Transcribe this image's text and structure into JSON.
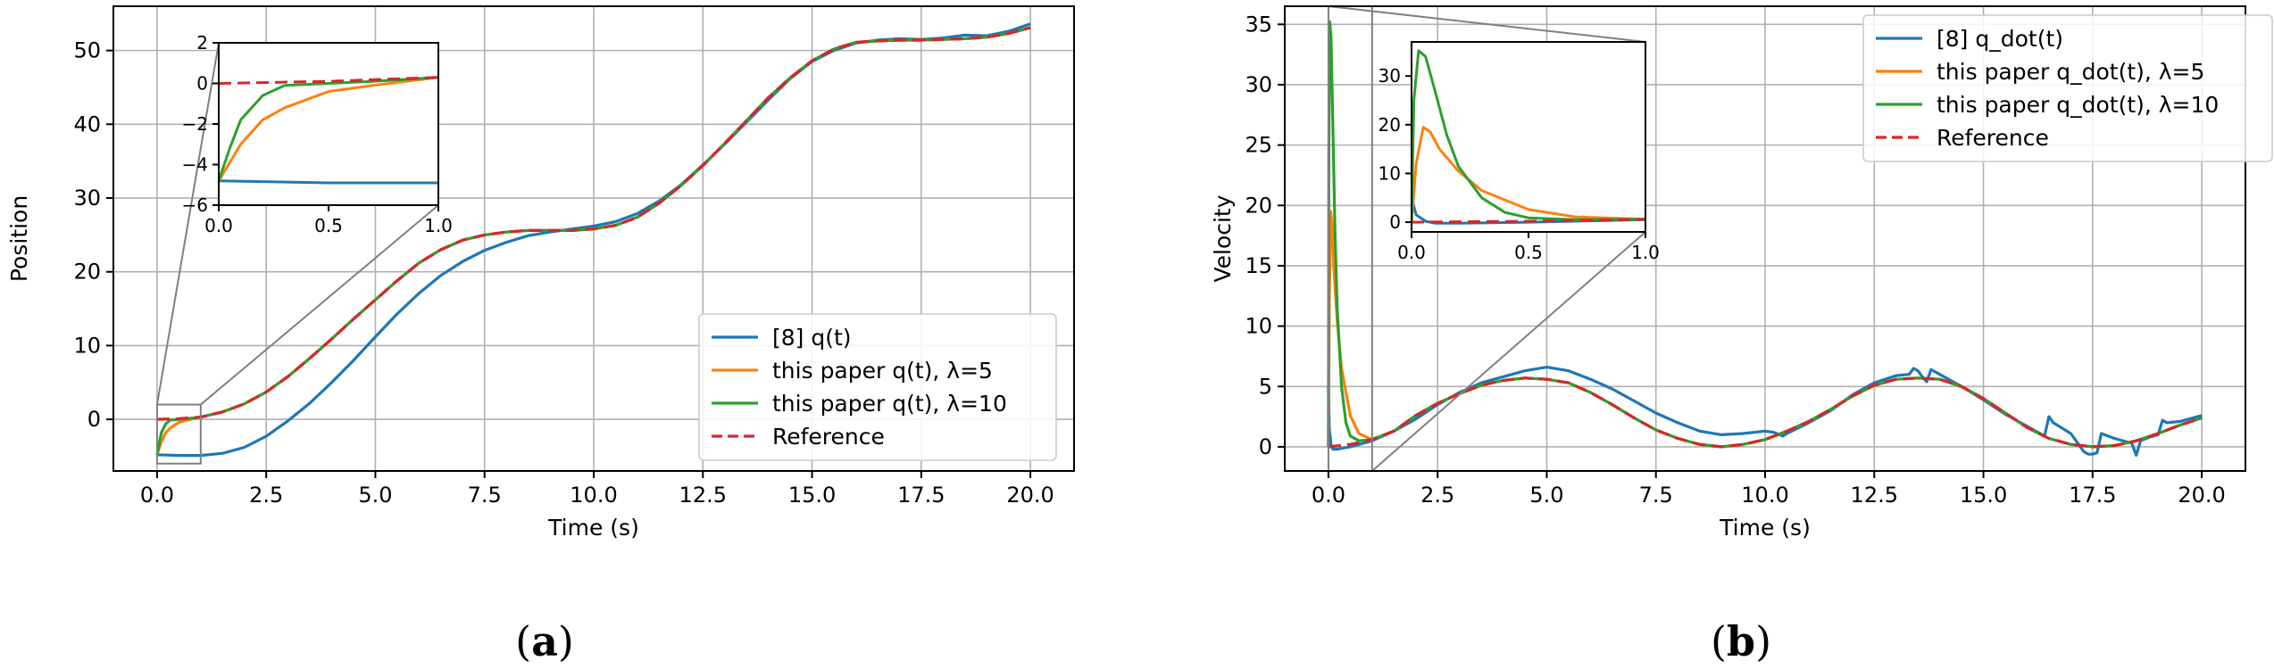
{
  "chart_data": [
    {
      "type": "line",
      "panel_label": {
        "open": "(",
        "letter": "a",
        "close": ")"
      },
      "title": "",
      "xlabel": "Time (s)",
      "ylabel": "Position",
      "xlim": [
        -1.0,
        21.0
      ],
      "ylim": [
        -7.0,
        56.0
      ],
      "xticks": [
        0.0,
        2.5,
        5.0,
        7.5,
        10.0,
        12.5,
        15.0,
        17.5,
        20.0
      ],
      "xtick_labels": [
        "0.0",
        "2.5",
        "5.0",
        "7.5",
        "10.0",
        "12.5",
        "15.0",
        "17.5",
        "20.0"
      ],
      "yticks": [
        0,
        10,
        20,
        30,
        40,
        50
      ],
      "ytick_labels": [
        "0",
        "10",
        "20",
        "30",
        "40",
        "50"
      ],
      "grid": true,
      "legend_position": "lower-right",
      "series": [
        {
          "name": "[8] q(t)",
          "color": "#1f77b4",
          "style": "solid",
          "x": [
            0,
            0.5,
            1,
            1.5,
            2,
            2.5,
            3,
            3.5,
            4,
            4.5,
            5,
            5.5,
            6,
            6.5,
            7,
            7.5,
            8,
            8.5,
            9,
            9.5,
            10,
            10.5,
            11,
            11.5,
            12,
            12.5,
            13,
            13.5,
            14,
            14.5,
            15,
            15.5,
            16,
            16.5,
            17,
            17.5,
            18,
            18.5,
            19,
            19.5,
            20
          ],
          "y": [
            -4.8,
            -4.9,
            -4.9,
            -4.6,
            -3.8,
            -2.3,
            -0.2,
            2.2,
            5.0,
            8.0,
            11.2,
            14.3,
            17.1,
            19.5,
            21.4,
            22.9,
            24.0,
            24.9,
            25.4,
            25.8,
            26.2,
            26.8,
            27.9,
            29.6,
            31.8,
            34.5,
            37.3,
            40.3,
            43.3,
            46.2,
            48.5,
            50.0,
            51.0,
            51.4,
            51.6,
            51.5,
            51.7,
            52.1,
            52.0,
            52.6,
            53.6
          ]
        },
        {
          "name": "this paper q(t), λ=5",
          "color": "#ff7f0e",
          "style": "solid",
          "x": [
            0,
            0.1,
            0.2,
            0.3,
            0.5,
            0.7,
            1,
            1.5,
            2,
            2.5,
            3,
            3.5,
            4,
            4.5,
            5,
            5.5,
            6,
            6.5,
            7,
            7.5,
            8,
            8.5,
            9,
            9.5,
            10,
            10.5,
            11,
            11.5,
            12,
            12.5,
            13,
            13.5,
            14,
            14.5,
            15,
            15.5,
            16,
            16.5,
            17,
            17.5,
            18,
            18.5,
            19,
            19.5,
            20
          ],
          "y": [
            -4.8,
            -3.0,
            -1.8,
            -1.2,
            -0.4,
            -0.1,
            0.3,
            1.0,
            2.1,
            3.7,
            5.8,
            8.3,
            10.9,
            13.6,
            16.2,
            18.8,
            21.2,
            23.0,
            24.3,
            25.0,
            25.4,
            25.6,
            25.6,
            25.6,
            25.8,
            26.3,
            27.4,
            29.3,
            31.7,
            34.4,
            37.4,
            40.5,
            43.6,
            46.3,
            48.6,
            50.2,
            51.1,
            51.3,
            51.4,
            51.4,
            51.5,
            51.6,
            51.8,
            52.3,
            53.1
          ]
        },
        {
          "name": "this paper q(t), λ=10",
          "color": "#2ca02c",
          "style": "solid",
          "x": [
            0,
            0.05,
            0.1,
            0.2,
            0.3,
            0.5,
            0.7,
            1,
            1.5,
            2,
            2.5,
            3,
            3.5,
            4,
            4.5,
            5,
            5.5,
            6,
            6.5,
            7,
            7.5,
            8,
            8.5,
            9,
            9.5,
            10,
            10.5,
            11,
            11.5,
            12,
            12.5,
            13,
            13.5,
            14,
            14.5,
            15,
            15.5,
            16,
            16.5,
            17,
            17.5,
            18,
            18.5,
            19,
            19.5,
            20
          ],
          "y": [
            -4.8,
            -3.2,
            -1.8,
            -0.6,
            -0.1,
            0.0,
            0.1,
            0.3,
            1.0,
            2.1,
            3.7,
            5.8,
            8.3,
            10.9,
            13.6,
            16.2,
            18.8,
            21.2,
            23.0,
            24.3,
            25.0,
            25.4,
            25.6,
            25.6,
            25.6,
            25.8,
            26.3,
            27.4,
            29.3,
            31.7,
            34.4,
            37.4,
            40.5,
            43.6,
            46.3,
            48.6,
            50.2,
            51.1,
            51.3,
            51.4,
            51.4,
            51.5,
            51.6,
            51.8,
            52.3,
            53.1
          ]
        },
        {
          "name": "Reference",
          "color": "#d62728",
          "style": "dashed",
          "x": [
            0,
            0.5,
            1,
            1.5,
            2,
            2.5,
            3,
            3.5,
            4,
            4.5,
            5,
            5.5,
            6,
            6.5,
            7,
            7.5,
            8,
            8.5,
            9,
            9.5,
            10,
            10.5,
            11,
            11.5,
            12,
            12.5,
            13,
            13.5,
            14,
            14.5,
            15,
            15.5,
            16,
            16.5,
            17,
            17.5,
            18,
            18.5,
            19,
            19.5,
            20
          ],
          "y": [
            0.0,
            0.1,
            0.3,
            1.0,
            2.1,
            3.7,
            5.8,
            8.3,
            10.9,
            13.6,
            16.2,
            18.8,
            21.2,
            23.0,
            24.3,
            25.0,
            25.4,
            25.6,
            25.6,
            25.6,
            25.8,
            26.3,
            27.4,
            29.3,
            31.7,
            34.4,
            37.4,
            40.5,
            43.6,
            46.3,
            48.6,
            50.2,
            51.1,
            51.3,
            51.4,
            51.4,
            51.5,
            51.6,
            51.8,
            52.3,
            53.1
          ]
        }
      ],
      "zoom_region": {
        "x": [
          0,
          1
        ],
        "y": [
          -6,
          2
        ]
      },
      "inset": {
        "xlim": [
          0.0,
          1.0
        ],
        "ylim": [
          -6.0,
          2.0
        ],
        "xticks": [
          0.0,
          0.5,
          1.0
        ],
        "xtick_labels": [
          "0.0",
          "0.5",
          "1.0"
        ],
        "yticks": [
          -6,
          -4,
          -2,
          0,
          2
        ],
        "ytick_labels": [
          "−6",
          "−4",
          "−2",
          "0",
          "2"
        ]
      }
    },
    {
      "type": "line",
      "panel_label": {
        "open": "(",
        "letter": "b",
        "close": ")"
      },
      "title": "",
      "xlabel": "Time (s)",
      "ylabel": "Velocity",
      "xlim": [
        -1.0,
        21.0
      ],
      "ylim": [
        -2.0,
        36.5
      ],
      "xticks": [
        0.0,
        2.5,
        5.0,
        7.5,
        10.0,
        12.5,
        15.0,
        17.5,
        20.0
      ],
      "xtick_labels": [
        "0.0",
        "2.5",
        "5.0",
        "7.5",
        "10.0",
        "12.5",
        "15.0",
        "17.5",
        "20.0"
      ],
      "yticks": [
        0,
        5,
        10,
        15,
        20,
        25,
        30,
        35
      ],
      "ytick_labels": [
        "0",
        "5",
        "10",
        "15",
        "20",
        "25",
        "30",
        "35"
      ],
      "grid": true,
      "legend_position": "upper-right",
      "series": [
        {
          "name": "[8] q_dot(t)",
          "color": "#1f77b4",
          "style": "solid",
          "x": [
            0,
            0.02,
            0.06,
            0.1,
            0.2,
            0.5,
            1,
            1.5,
            2,
            2.5,
            3,
            3.5,
            4,
            4.5,
            5,
            5.5,
            6,
            6.5,
            7,
            7.5,
            8,
            8.5,
            9,
            9.5,
            10,
            10.2,
            10.4,
            10.5,
            11,
            11.5,
            12,
            12.5,
            13,
            13.3,
            13.4,
            13.5,
            13.6,
            13.7,
            13.8,
            14,
            14.5,
            15,
            15.5,
            16,
            16.4,
            16.5,
            16.6,
            17,
            17.3,
            17.4,
            17.5,
            17.6,
            17.7,
            18,
            18.4,
            18.5,
            18.6,
            18.8,
            19,
            19.1,
            19.2,
            19.5,
            20
          ],
          "y": [
            5.0,
            1.5,
            0.2,
            -0.2,
            -0.2,
            0.0,
            0.5,
            1.3,
            2.3,
            3.5,
            4.5,
            5.3,
            5.8,
            6.3,
            6.6,
            6.3,
            5.6,
            4.8,
            3.8,
            2.8,
            2.0,
            1.3,
            1.0,
            1.1,
            1.3,
            1.2,
            0.9,
            1.1,
            2.0,
            3.0,
            4.3,
            5.3,
            5.9,
            6.0,
            6.5,
            6.3,
            5.8,
            5.4,
            6.4,
            6.0,
            5.0,
            3.9,
            2.7,
            1.7,
            0.9,
            2.5,
            2.0,
            1.1,
            -0.4,
            -0.6,
            -0.6,
            -0.5,
            1.1,
            0.7,
            0.3,
            -0.7,
            0.5,
            0.8,
            1.0,
            2.2,
            2.0,
            2.1,
            2.6
          ]
        },
        {
          "name": "this paper q_dot(t), λ=5",
          "color": "#ff7f0e",
          "style": "solid",
          "x": [
            0,
            0.02,
            0.05,
            0.08,
            0.12,
            0.2,
            0.3,
            0.5,
            0.7,
            1,
            1.5,
            2,
            2.5,
            3,
            3.5,
            4,
            4.5,
            5,
            5.5,
            6,
            6.5,
            7,
            7.5,
            8,
            8.5,
            9,
            9.5,
            10,
            10.5,
            11,
            11.5,
            12,
            12.5,
            13,
            13.5,
            14,
            14.5,
            15,
            15.5,
            16,
            16.5,
            17,
            17.5,
            18,
            18.5,
            19,
            19.5,
            20
          ],
          "y": [
            0.0,
            12.0,
            19.5,
            18.5,
            15.0,
            10.5,
            6.5,
            2.6,
            1.1,
            0.6,
            1.3,
            2.6,
            3.6,
            4.4,
            5.1,
            5.5,
            5.7,
            5.6,
            5.3,
            4.5,
            3.5,
            2.4,
            1.4,
            0.7,
            0.2,
            0.0,
            0.2,
            0.6,
            1.3,
            2.1,
            3.1,
            4.2,
            5.1,
            5.6,
            5.7,
            5.6,
            5.0,
            4.0,
            2.8,
            1.6,
            0.7,
            0.2,
            0.0,
            0.1,
            0.5,
            1.1,
            1.8,
            2.4
          ]
        },
        {
          "name": "this paper q_dot(t), λ=10",
          "color": "#2ca02c",
          "style": "solid",
          "x": [
            0,
            0.01,
            0.03,
            0.06,
            0.1,
            0.15,
            0.2,
            0.3,
            0.4,
            0.5,
            0.7,
            1,
            1.5,
            2,
            2.5,
            3,
            3.5,
            4,
            4.5,
            5,
            5.5,
            6,
            6.5,
            7,
            7.5,
            8,
            8.5,
            9,
            9.5,
            10,
            10.5,
            11,
            11.5,
            12,
            12.5,
            13,
            13.5,
            14,
            14.5,
            15,
            15.5,
            16,
            16.5,
            17,
            17.5,
            18,
            18.5,
            19,
            19.5,
            20
          ],
          "y": [
            0.0,
            25.0,
            35.2,
            34.0,
            27.0,
            18.0,
            11.5,
            5.0,
            2.0,
            0.9,
            0.5,
            0.6,
            1.3,
            2.6,
            3.6,
            4.4,
            5.1,
            5.5,
            5.7,
            5.6,
            5.3,
            4.5,
            3.5,
            2.4,
            1.4,
            0.7,
            0.2,
            0.0,
            0.2,
            0.6,
            1.3,
            2.1,
            3.1,
            4.2,
            5.1,
            5.6,
            5.7,
            5.6,
            5.0,
            4.0,
            2.8,
            1.6,
            0.7,
            0.2,
            0.0,
            0.1,
            0.5,
            1.1,
            1.8,
            2.4
          ]
        },
        {
          "name": "Reference",
          "color": "#d62728",
          "style": "dashed",
          "x": [
            0,
            0.5,
            1,
            1.5,
            2,
            2.5,
            3,
            3.5,
            4,
            4.5,
            5,
            5.5,
            6,
            6.5,
            7,
            7.5,
            8,
            8.5,
            9,
            9.5,
            10,
            10.5,
            11,
            11.5,
            12,
            12.5,
            13,
            13.5,
            14,
            14.5,
            15,
            15.5,
            16,
            16.5,
            17,
            17.5,
            18,
            18.5,
            19,
            19.5,
            20
          ],
          "y": [
            0.0,
            0.2,
            0.6,
            1.3,
            2.6,
            3.6,
            4.4,
            5.1,
            5.5,
            5.7,
            5.6,
            5.3,
            4.5,
            3.5,
            2.4,
            1.4,
            0.7,
            0.2,
            0.0,
            0.2,
            0.6,
            1.3,
            2.1,
            3.1,
            4.2,
            5.1,
            5.6,
            5.7,
            5.6,
            5.0,
            4.0,
            2.8,
            1.6,
            0.7,
            0.2,
            0.0,
            0.1,
            0.5,
            1.1,
            1.8,
            2.4
          ]
        }
      ],
      "zoom_region": {
        "x": [
          0,
          1
        ],
        "y": [
          -2,
          36.5
        ]
      },
      "inset": {
        "xlim": [
          0.0,
          1.0
        ],
        "ylim": [
          -2.0,
          37.0
        ],
        "xticks": [
          0.0,
          0.5,
          1.0
        ],
        "xtick_labels": [
          "0.0",
          "0.5",
          "1.0"
        ],
        "yticks": [
          0,
          10,
          20,
          30
        ],
        "ytick_labels": [
          "0",
          "10",
          "20",
          "30"
        ]
      }
    }
  ]
}
